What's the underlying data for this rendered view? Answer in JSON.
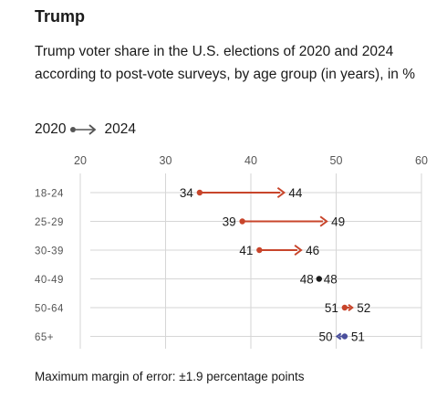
{
  "title": "Trump",
  "subtitle": "Trump voter share in the U.S. elections of 2020 and 2024 according to post-vote surveys, by age group (in years), in %",
  "legend": {
    "from_label": "2020",
    "to_label": "2024"
  },
  "footnote": "Maximum margin of error: ±1.9 percentage points",
  "colors": {
    "increase": "#c8452b",
    "decrease": "#4a4f9c",
    "unchanged": "#1a1a1a",
    "grid": "#d6d6d6",
    "text": "#1a1a1a",
    "muted": "#555555"
  },
  "chart_data": {
    "type": "dumbbell",
    "xlim": [
      20,
      60
    ],
    "xticks": [
      20,
      30,
      40,
      50,
      60
    ],
    "grid": true,
    "categories": [
      "18-24",
      "25-29",
      "30-39",
      "40-49",
      "50-64",
      "65+"
    ],
    "series": [
      {
        "name": "2020",
        "values": [
          34,
          39,
          41,
          48,
          51,
          51
        ]
      },
      {
        "name": "2024",
        "values": [
          44,
          49,
          46,
          48,
          52,
          50
        ]
      }
    ]
  }
}
